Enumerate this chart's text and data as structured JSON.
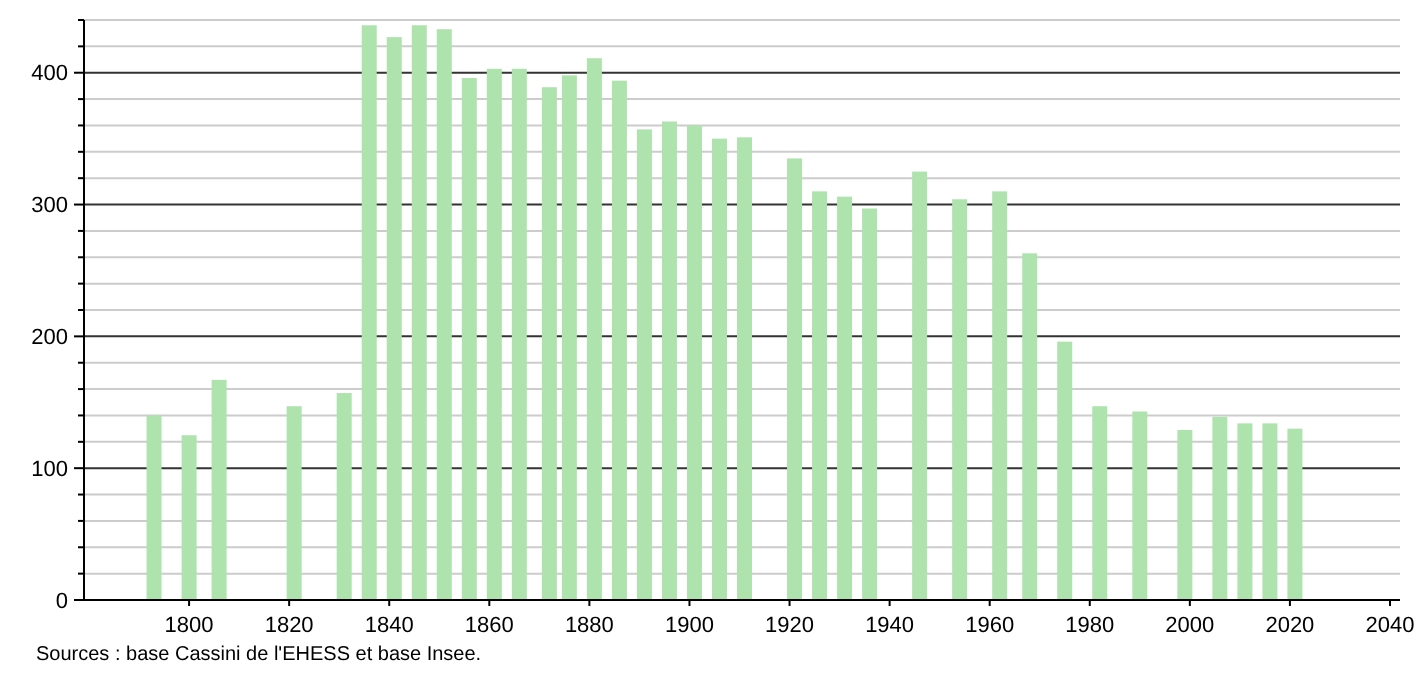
{
  "chart_data": {
    "type": "bar",
    "x": [
      1793,
      1800,
      1806,
      1821,
      1831,
      1836,
      1841,
      1846,
      1851,
      1856,
      1861,
      1866,
      1872,
      1876,
      1881,
      1886,
      1891,
      1896,
      1901,
      1906,
      1911,
      1921,
      1926,
      1931,
      1936,
      1946,
      1954,
      1962,
      1968,
      1975,
      1982,
      1990,
      1999,
      2006,
      2011,
      2016,
      2021
    ],
    "values": [
      140,
      125,
      167,
      147,
      157,
      436,
      427,
      436,
      433,
      396,
      403,
      403,
      389,
      398,
      411,
      394,
      357,
      363,
      360,
      350,
      351,
      335,
      310,
      306,
      297,
      325,
      304,
      310,
      263,
      196,
      147,
      143,
      129,
      139,
      134,
      134,
      130
    ],
    "color": "#aee3ae",
    "xlim": [
      1779,
      2042
    ],
    "xticks": [
      1800,
      1820,
      1840,
      1860,
      1880,
      1900,
      1920,
      1940,
      1960,
      1980,
      2000,
      2020,
      2040
    ],
    "ylim": [
      0,
      440
    ],
    "yticks": [
      0,
      {
        "value": 20,
        "label": null
      },
      {
        "value": 40,
        "label": null
      },
      {
        "value": 60,
        "label": null
      },
      {
        "value": 80,
        "label": null
      },
      100,
      {
        "value": 120,
        "label": null
      },
      {
        "value": 140,
        "label": null
      },
      {
        "value": 160,
        "label": null
      },
      {
        "value": 180,
        "label": null
      },
      200,
      {
        "value": 220,
        "label": null
      },
      {
        "value": 240,
        "label": null
      },
      {
        "value": 260,
        "label": null
      },
      {
        "value": 280,
        "label": null
      },
      300,
      {
        "value": 320,
        "label": null
      },
      {
        "value": 340,
        "label": null
      },
      {
        "value": 360,
        "label": null
      },
      {
        "value": 380,
        "label": null
      },
      400,
      {
        "value": 420,
        "label": null
      },
      {
        "value": 440,
        "label": null
      }
    ],
    "grid": "y",
    "annotations": [
      "Sources : base Cassini de l'EHESS et base Insee."
    ]
  }
}
